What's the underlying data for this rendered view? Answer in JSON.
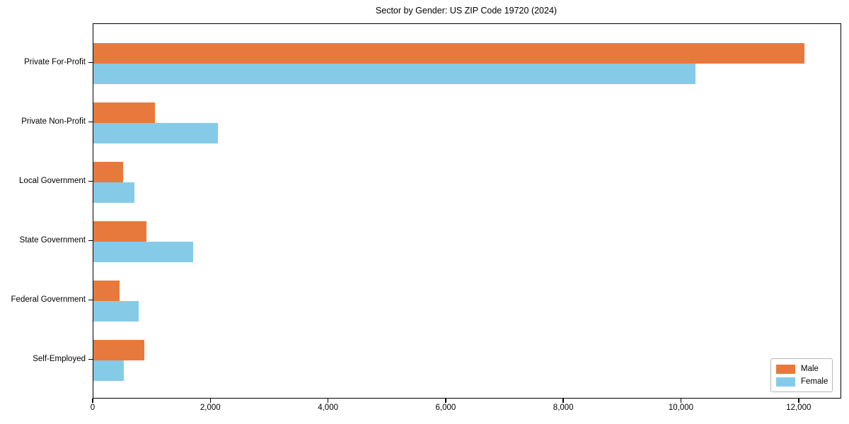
{
  "chart_data": {
    "type": "bar",
    "orientation": "horizontal",
    "title": "Sector by Gender: US ZIP Code 19720 (2024)",
    "categories": [
      "Private For-Profit",
      "Private Non-Profit",
      "Local Government",
      "State Government",
      "Federal Government",
      "Self-Employed"
    ],
    "series": [
      {
        "name": "Male",
        "color": "#E8793C",
        "values": [
          12090,
          1050,
          500,
          900,
          450,
          870
        ]
      },
      {
        "name": "Female",
        "color": "#85CBE8",
        "values": [
          10230,
          2120,
          700,
          1700,
          770,
          520
        ]
      }
    ],
    "xlabel": "",
    "ylabel": "",
    "xlim": [
      0,
      12700
    ],
    "x_ticks": [
      0,
      2000,
      4000,
      6000,
      8000,
      10000,
      12000
    ],
    "x_tick_labels": [
      "0",
      "2,000",
      "4,000",
      "6,000",
      "8,000",
      "10,000",
      "12,000"
    ],
    "grid": false,
    "legend": {
      "position": "lower right",
      "entries": [
        {
          "label": "Male",
          "color": "#E8793C"
        },
        {
          "label": "Female",
          "color": "#85CBE8"
        }
      ]
    }
  }
}
